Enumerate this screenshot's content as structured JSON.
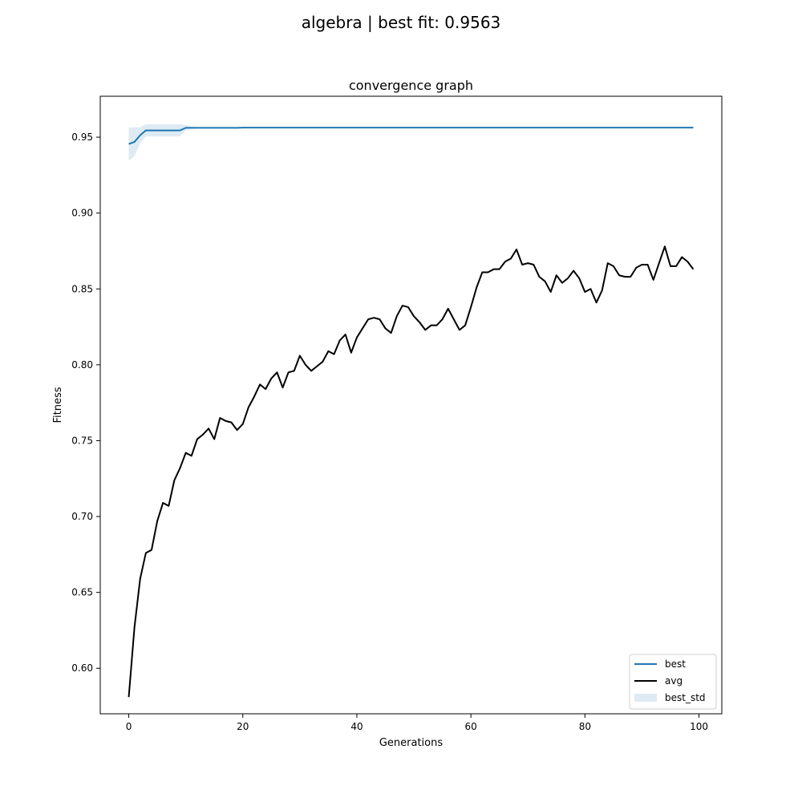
{
  "figure": {
    "suptitle": "algebra | best fit: 0.9563"
  },
  "chart_data": {
    "type": "line",
    "title": "convergence graph",
    "xlabel": "Generations",
    "ylabel": "Fitness",
    "xlim": [
      -5,
      104
    ],
    "ylim": [
      0.57,
      0.977
    ],
    "xticks": [
      0,
      20,
      40,
      60,
      80,
      100
    ],
    "yticks": [
      0.6,
      0.65,
      0.7,
      0.75,
      0.8,
      0.85,
      0.9,
      0.95
    ],
    "ytick_labels": [
      "0.60",
      "0.65",
      "0.70",
      "0.75",
      "0.80",
      "0.85",
      "0.90",
      "0.95"
    ],
    "grid": false,
    "legend_position": "lower right",
    "colors": {
      "best": "#1f77b4",
      "avg": "#000000",
      "best_std": "#1f77b4"
    },
    "x": [
      0,
      1,
      2,
      3,
      4,
      5,
      6,
      7,
      8,
      9,
      10,
      11,
      12,
      13,
      14,
      15,
      16,
      17,
      18,
      19,
      20,
      21,
      22,
      23,
      24,
      25,
      26,
      27,
      28,
      29,
      30,
      31,
      32,
      33,
      34,
      35,
      36,
      37,
      38,
      39,
      40,
      41,
      42,
      43,
      44,
      45,
      46,
      47,
      48,
      49,
      50,
      51,
      52,
      53,
      54,
      55,
      56,
      57,
      58,
      59,
      60,
      61,
      62,
      63,
      64,
      65,
      66,
      67,
      68,
      69,
      70,
      71,
      72,
      73,
      74,
      75,
      76,
      77,
      78,
      79,
      80,
      81,
      82,
      83,
      84,
      85,
      86,
      87,
      88,
      89,
      90,
      91,
      92,
      93,
      94,
      95,
      96,
      97,
      98,
      99
    ],
    "series": [
      {
        "name": "best",
        "values": [
          0.9455,
          0.9469,
          0.9513,
          0.9545,
          0.9545,
          0.9545,
          0.9545,
          0.9545,
          0.9545,
          0.9545,
          0.9562,
          0.9562,
          0.9562,
          0.9562,
          0.9562,
          0.9562,
          0.9562,
          0.9562,
          0.9562,
          0.9562,
          0.9563,
          0.9563,
          0.9563,
          0.9563,
          0.9563,
          0.9563,
          0.9563,
          0.9563,
          0.9563,
          0.9563,
          0.9563,
          0.9563,
          0.9563,
          0.9563,
          0.9563,
          0.9563,
          0.9563,
          0.9563,
          0.9563,
          0.9563,
          0.9563,
          0.9563,
          0.9563,
          0.9563,
          0.9563,
          0.9563,
          0.9563,
          0.9563,
          0.9563,
          0.9563,
          0.9563,
          0.9563,
          0.9563,
          0.9563,
          0.9563,
          0.9563,
          0.9563,
          0.9563,
          0.9563,
          0.9563,
          0.9563,
          0.9563,
          0.9563,
          0.9563,
          0.9563,
          0.9563,
          0.9563,
          0.9563,
          0.9563,
          0.9563,
          0.9563,
          0.9563,
          0.9563,
          0.9563,
          0.9563,
          0.9563,
          0.9563,
          0.9563,
          0.9563,
          0.9563,
          0.9563,
          0.9563,
          0.9563,
          0.9563,
          0.9563,
          0.9563,
          0.9563,
          0.9563,
          0.9563,
          0.9563,
          0.9563,
          0.9563,
          0.9563,
          0.9563,
          0.9563,
          0.9563,
          0.9563,
          0.9563,
          0.9563,
          0.9563
        ]
      },
      {
        "name": "avg",
        "values": [
          0.581,
          0.627,
          0.659,
          0.676,
          0.678,
          0.697,
          0.709,
          0.707,
          0.724,
          0.732,
          0.742,
          0.74,
          0.751,
          0.754,
          0.758,
          0.751,
          0.765,
          0.763,
          0.762,
          0.757,
          0.761,
          0.772,
          0.779,
          0.787,
          0.784,
          0.791,
          0.795,
          0.785,
          0.795,
          0.796,
          0.806,
          0.8,
          0.796,
          0.799,
          0.802,
          0.809,
          0.807,
          0.816,
          0.82,
          0.808,
          0.818,
          0.824,
          0.83,
          0.831,
          0.83,
          0.824,
          0.821,
          0.832,
          0.839,
          0.838,
          0.832,
          0.828,
          0.823,
          0.826,
          0.826,
          0.83,
          0.837,
          0.83,
          0.823,
          0.826,
          0.838,
          0.851,
          0.861,
          0.861,
          0.863,
          0.863,
          0.868,
          0.87,
          0.876,
          0.866,
          0.867,
          0.866,
          0.858,
          0.855,
          0.848,
          0.859,
          0.854,
          0.857,
          0.862,
          0.857,
          0.848,
          0.85,
          0.841,
          0.849,
          0.867,
          0.865,
          0.859,
          0.858,
          0.858,
          0.864,
          0.866,
          0.866,
          0.856,
          0.867,
          0.878,
          0.865,
          0.865,
          0.871,
          0.868,
          0.863
        ]
      },
      {
        "name": "best_std",
        "type": "band",
        "upper": [
          0.9565,
          0.9565,
          0.9565,
          0.9585,
          0.9585,
          0.9585,
          0.9585,
          0.9585,
          0.9585,
          0.9585,
          0.958,
          0.957,
          0.9568,
          0.9566,
          0.9565,
          0.9565,
          0.9565,
          0.9565,
          0.9565,
          0.9565,
          0.9564,
          0.9564,
          0.9564,
          0.9564,
          0.9564,
          0.9564,
          0.9564,
          0.9564,
          0.9564,
          0.9564,
          0.9564,
          0.9564,
          0.9564,
          0.9564,
          0.9564,
          0.9564,
          0.9564,
          0.9564,
          0.9564,
          0.9564,
          0.9564,
          0.9564,
          0.9564,
          0.9564,
          0.9564,
          0.9564,
          0.9564,
          0.9564,
          0.9564,
          0.9564,
          0.9564,
          0.9564,
          0.9564,
          0.9564,
          0.9564,
          0.9564,
          0.9564,
          0.9564,
          0.9564,
          0.9564,
          0.9564,
          0.9564,
          0.9564,
          0.9564,
          0.9564,
          0.9564,
          0.9564,
          0.9564,
          0.9564,
          0.9564,
          0.9564,
          0.9564,
          0.9564,
          0.9564,
          0.9564,
          0.9564,
          0.9564,
          0.9564,
          0.9564,
          0.9564,
          0.9564,
          0.9564,
          0.9564,
          0.9564,
          0.9564,
          0.9564,
          0.9564,
          0.9564,
          0.9564,
          0.9564,
          0.9564,
          0.9564,
          0.9564,
          0.9564,
          0.9564,
          0.9564,
          0.9564,
          0.9564,
          0.9564,
          0.9564
        ],
        "lower": [
          0.9345,
          0.9373,
          0.9461,
          0.9505,
          0.9505,
          0.9505,
          0.9505,
          0.9505,
          0.9505,
          0.9505,
          0.9544,
          0.9554,
          0.9556,
          0.9558,
          0.9559,
          0.9559,
          0.9559,
          0.9559,
          0.9559,
          0.9559,
          0.9562,
          0.9562,
          0.9562,
          0.9562,
          0.9562,
          0.9562,
          0.9562,
          0.9562,
          0.9562,
          0.9562,
          0.9562,
          0.9562,
          0.9562,
          0.9562,
          0.9562,
          0.9562,
          0.9562,
          0.9562,
          0.9562,
          0.9562,
          0.9562,
          0.9562,
          0.9562,
          0.9562,
          0.9562,
          0.9562,
          0.9562,
          0.9562,
          0.9562,
          0.9562,
          0.9562,
          0.9562,
          0.9562,
          0.9562,
          0.9562,
          0.9562,
          0.9562,
          0.9562,
          0.9562,
          0.9562,
          0.9562,
          0.9562,
          0.9562,
          0.9562,
          0.9562,
          0.9562,
          0.9562,
          0.9562,
          0.9562,
          0.9562,
          0.9562,
          0.9562,
          0.9562,
          0.9562,
          0.9562,
          0.9562,
          0.9562,
          0.9562,
          0.9562,
          0.9562,
          0.9562,
          0.9562,
          0.9562,
          0.9562,
          0.9562,
          0.9562,
          0.9562,
          0.9562,
          0.9562,
          0.9562,
          0.9562,
          0.9562,
          0.9562,
          0.9562,
          0.9562,
          0.9562,
          0.9562,
          0.9562,
          0.9562,
          0.9562
        ]
      }
    ],
    "legend": [
      "best",
      "avg",
      "best_std"
    ]
  }
}
